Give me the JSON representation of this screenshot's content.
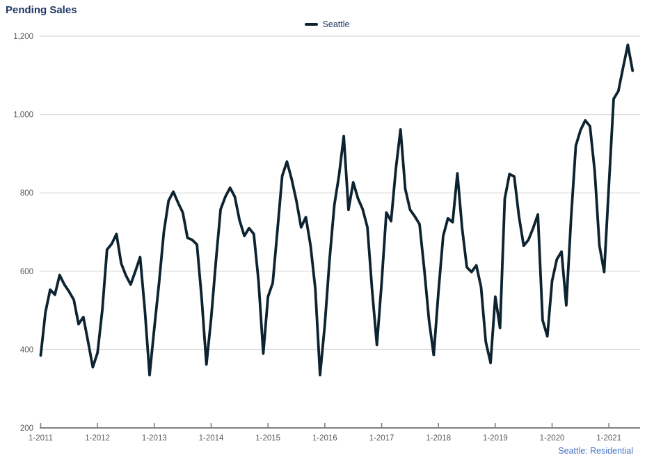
{
  "title": "Pending Sales",
  "legend": {
    "label": "Seattle"
  },
  "footer": {
    "note": "Seattle: Residential"
  },
  "colors": {
    "background": "#ffffff",
    "title_text": "#1f3864",
    "legend_text": "#1f3864",
    "series_line": "#0d2330",
    "gridline": "#d9d9d9",
    "axis_line": "#808080",
    "axis_tick": "#808080",
    "axis_label_text": "#595959",
    "footer_text": "#4472c4"
  },
  "chart_data": {
    "type": "line",
    "title": "Pending Sales",
    "series_name": "Seattle",
    "x_unit": "month",
    "x_range": [
      "2011-01",
      "2021-06"
    ],
    "ylim": [
      200,
      1200
    ],
    "grid": "horizontal",
    "legend_position": "top-center",
    "y_tick_values": [
      1200,
      1000,
      800,
      600,
      400,
      200
    ],
    "y_tick_labels": [
      "1,200",
      "1,000",
      "800",
      "600",
      "400",
      "200"
    ],
    "x_tick_labels": [
      "1-2011",
      "1-2012",
      "1-2013",
      "1-2014",
      "1-2015",
      "1-2016",
      "1-2017",
      "1-2018",
      "1-2019",
      "1-2020",
      "1-2021"
    ],
    "years_order": [
      "2011",
      "2012",
      "2013",
      "2014",
      "2015",
      "2016",
      "2017",
      "2018",
      "2019",
      "2020",
      "2021"
    ],
    "values_by_year": {
      "2011": [
        385,
        495,
        553,
        540,
        590,
        566,
        548,
        527,
        465,
        483,
        420,
        355
      ],
      "2012": [
        392,
        500,
        655,
        670,
        695,
        620,
        589,
        566,
        600,
        636,
        501,
        335
      ],
      "2013": [
        455,
        570,
        700,
        780,
        803,
        775,
        750,
        685,
        680,
        668,
        530,
        362
      ],
      "2014": [
        480,
        625,
        758,
        790,
        813,
        790,
        730,
        690,
        710,
        695,
        575,
        390
      ],
      "2015": [
        535,
        570,
        705,
        843,
        880,
        835,
        780,
        712,
        738,
        665,
        555,
        335
      ],
      "2016": [
        462,
        630,
        768,
        845,
        945,
        757,
        827,
        786,
        758,
        712,
        550,
        412
      ],
      "2017": [
        570,
        750,
        728,
        860,
        962,
        810,
        757,
        740,
        720,
        605,
        475,
        386
      ],
      "2018": [
        548,
        690,
        735,
        725,
        850,
        710,
        610,
        598,
        615,
        560,
        420,
        366
      ],
      "2019": [
        535,
        455,
        785,
        848,
        842,
        740,
        665,
        680,
        710,
        745,
        475,
        434
      ],
      "2020": [
        575,
        630,
        650,
        513,
        735,
        920,
        960,
        985,
        970,
        855,
        665,
        598
      ],
      "2021": [
        820,
        1040,
        1060,
        1120,
        1178,
        1112
      ]
    }
  }
}
